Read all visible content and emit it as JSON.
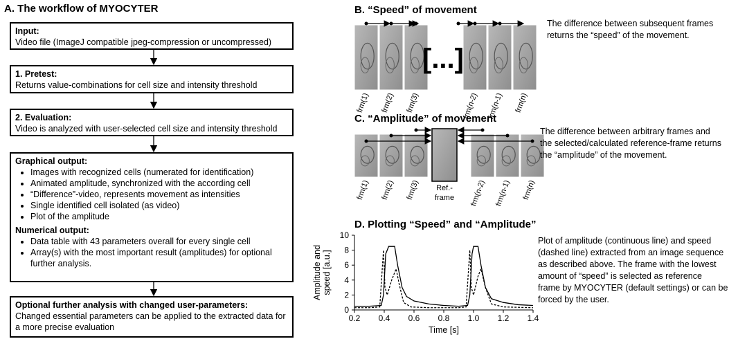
{
  "panel_a": {
    "title": "A. The workflow of MYOCYTER",
    "boxes": [
      {
        "sections": [
          {
            "heading": "Input:",
            "lines": [
              "Video file (ImageJ compatible jpeg-compression or uncompressed)"
            ]
          }
        ]
      },
      {
        "sections": [
          {
            "heading": "1. Pretest:",
            "lines": [
              "Returns value-combinations for cell size and intensity threshold"
            ]
          }
        ]
      },
      {
        "sections": [
          {
            "heading": "2. Evaluation:",
            "lines": [
              "Video is analyzed with user-selected cell size and intensity threshold"
            ]
          }
        ]
      },
      {
        "sections": [
          {
            "heading": "Graphical output:",
            "bullets": [
              "Images with recognized cells (numerated for identification)",
              "Animated amplitude, synchronized  with the according cell",
              "“Difference”-video, represents movement as intensities",
              "Single identified cell isolated (as video)",
              "Plot of the amplitude"
            ]
          },
          {
            "heading": "Numerical output:",
            "bullets": [
              "Data table with 43 parameters overall for every single cell",
              "Array(s) with the most important result (amplitudes) for optional further analysis."
            ]
          }
        ]
      },
      {
        "sections": [
          {
            "heading": "Optional further analysis with changed user-parameters:",
            "lines": [
              "Changed essential parameters can be applied to the extracted data for a more precise evaluation"
            ]
          }
        ]
      }
    ]
  },
  "panel_b": {
    "title": "B. “Speed” of movement",
    "frame_labels": [
      "frm(1)",
      "frm(2)",
      "frm(3)",
      "frm(n-2)",
      "frm(n-1)",
      "frm(n)"
    ],
    "ellipsis": "[...]",
    "description": [
      "The difference between subsequent frames",
      "returns the “speed” of the movement."
    ]
  },
  "panel_c": {
    "title": "C. “Amplitude” of movement",
    "frame_labels": [
      "frm(1)",
      "frm(2)",
      "frm(3)",
      "frm(n-2)",
      "frm(n-1)",
      "frm(n)"
    ],
    "reference_label": [
      "Ref.-",
      "frame"
    ],
    "description": [
      "The difference between arbitrary frames and",
      "the selected/calculated reference-frame returns",
      "the “amplitude” of the movement."
    ]
  },
  "panel_d": {
    "title": "D. Plotting  “Speed” and “Amplitude”",
    "description": [
      "Plot of amplitude (continuous line) and speed",
      "(dashed line) extracted from an image sequence",
      "as described above. The frame with the lowest",
      "amount of “speed” is selected as reference",
      "frame by MYOCYTER (default settings) or can be",
      "forced by the user."
    ],
    "chart_data": {
      "type": "line",
      "xlabel": "Time [s]",
      "ylabel": [
        "Amplitude and",
        "speed [a.u.]"
      ],
      "xlim": [
        0.2,
        1.4
      ],
      "ylim": [
        0,
        10
      ],
      "xticks": [
        0.2,
        0.4,
        0.6,
        0.8,
        {
          "value": 1,
          "label": "1.0"
        },
        1.2,
        1.4
      ],
      "yticks": [
        0,
        2,
        4,
        6,
        8,
        10
      ],
      "series": [
        {
          "color": "#000000",
          "dashed": false,
          "x": [
            0.2,
            0.3,
            0.38,
            0.395,
            0.41,
            0.43,
            0.47,
            0.49,
            0.52,
            0.55,
            0.6,
            0.7,
            0.8,
            0.9,
            0.96,
            0.975,
            0.99,
            1.0,
            1.03,
            1.05,
            1.08,
            1.12,
            1.2,
            1.3,
            1.4
          ],
          "values": [
            0.5,
            0.5,
            0.6,
            2,
            7.5,
            8.5,
            8.5,
            6,
            3,
            1.8,
            1.2,
            0.8,
            0.6,
            0.5,
            0.6,
            2,
            7.5,
            8.5,
            8.5,
            6,
            3,
            1.5,
            1,
            0.7,
            0.6
          ]
        },
        {
          "color": "#000000",
          "dashed": true,
          "x": [
            0.2,
            0.3,
            0.37,
            0.385,
            0.395,
            0.405,
            0.42,
            0.45,
            0.48,
            0.5,
            0.53,
            0.58,
            0.7,
            0.8,
            0.9,
            0.95,
            0.965,
            0.975,
            0.985,
            1.0,
            1.03,
            1.05,
            1.08,
            1.12,
            1.2,
            1.4
          ],
          "values": [
            0.3,
            0.3,
            0.4,
            5,
            8,
            3,
            2,
            4,
            5.5,
            3.5,
            1,
            0.4,
            0.3,
            0.3,
            0.3,
            0.4,
            5,
            8,
            3,
            2,
            4.5,
            5.5,
            3,
            0.8,
            0.4,
            0.3
          ]
        }
      ]
    }
  }
}
